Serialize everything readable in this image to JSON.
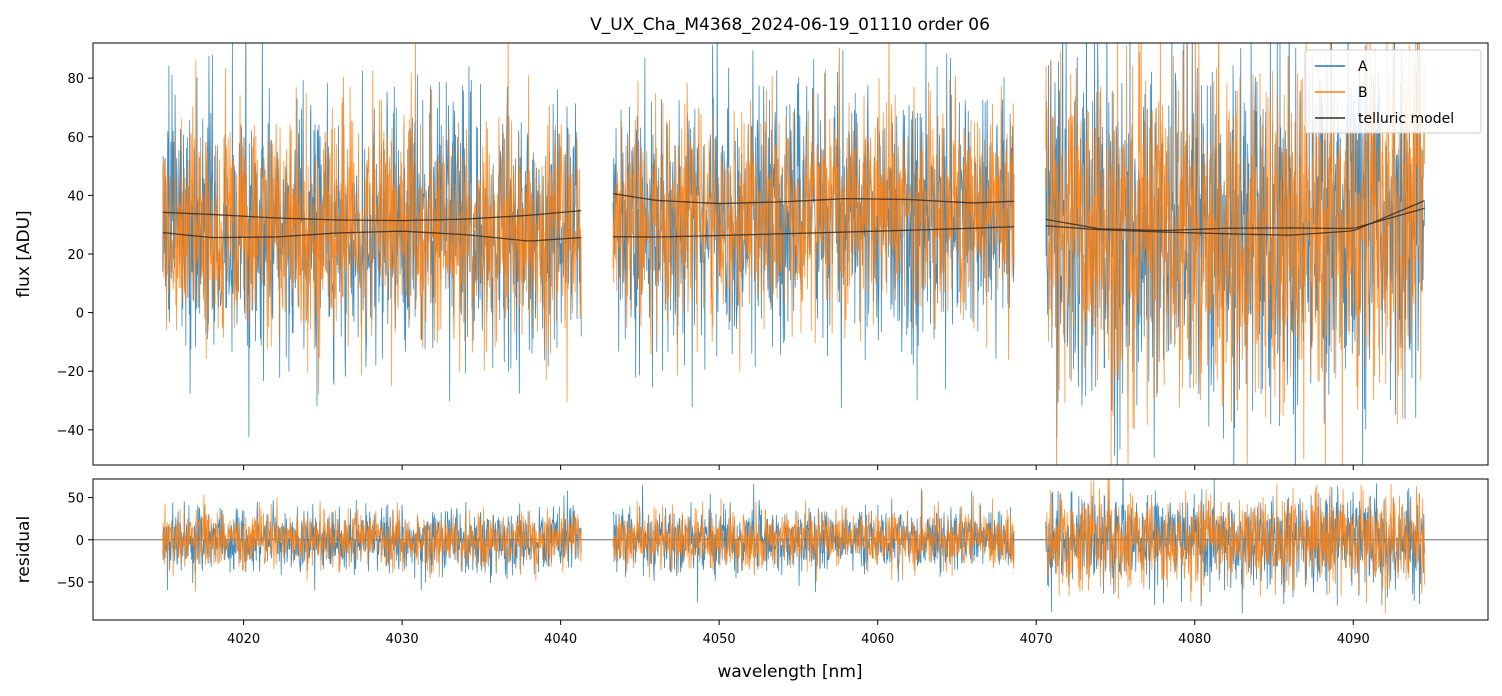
{
  "chart_data": {
    "type": "line",
    "title": "V_UX_Cha_M4368_2024-06-19_01110  order 06",
    "xlabel": "wavelength [nm]",
    "xlim": [
      4010.5,
      4098.5
    ],
    "xticks": [
      4020,
      4030,
      4040,
      4050,
      4060,
      4070,
      4080,
      4090
    ],
    "segments": [
      [
        4014.9,
        4041.3
      ],
      [
        4043.3,
        4068.6
      ],
      [
        4070.6,
        4094.5
      ]
    ],
    "colors": {
      "A": "#1f77b4",
      "B": "#ff7f0e",
      "model": "#3b2a20"
    },
    "panels": [
      {
        "name": "flux",
        "ylabel": "flux [ADU]",
        "ylim": [
          -52,
          92
        ],
        "yticks": [
          -40,
          -20,
          0,
          20,
          40,
          60,
          80
        ],
        "noise": [
          {
            "series": "A",
            "sigma": [
              22,
              21,
              30
            ]
          },
          {
            "series": "B",
            "sigma": [
              20,
              19,
              30
            ]
          }
        ],
        "telluric_model": [
          {
            "segment": 0,
            "x": [
              4014.9,
              4018,
              4022,
              4026,
              4030,
              4034,
              4038,
              4041.3
            ],
            "y": [
              34.2,
              33.5,
              32.3,
              31.6,
              31.4,
              31.9,
              33.2,
              34.8
            ]
          },
          {
            "segment": 0,
            "x": [
              4014.9,
              4018,
              4022,
              4026,
              4030,
              4034,
              4038,
              4041.3
            ],
            "y": [
              27.3,
              25.6,
              25.8,
              27.2,
              27.8,
              26.6,
              24.4,
              25.6
            ]
          },
          {
            "segment": 1,
            "x": [
              4043.3,
              4046,
              4050,
              4054,
              4058,
              4062,
              4066,
              4068.6
            ],
            "y": [
              40.6,
              38.3,
              37.2,
              37.8,
              38.9,
              38.6,
              37.4,
              38.0
            ]
          },
          {
            "segment": 1,
            "x": [
              4043.3,
              4046,
              4050,
              4054,
              4058,
              4062,
              4066,
              4068.6
            ],
            "y": [
              25.9,
              25.8,
              26.3,
              26.9,
              27.5,
              28.1,
              28.8,
              29.3
            ]
          },
          {
            "segment": 2,
            "x": [
              4070.6,
              4074,
              4078,
              4082,
              4086,
              4090,
              4094.5
            ],
            "y": [
              31.8,
              28.6,
              28.0,
              28.8,
              28.9,
              28.7,
              35.6
            ]
          },
          {
            "segment": 2,
            "x": [
              4070.6,
              4074,
              4078,
              4082,
              4086,
              4090,
              4094.5
            ],
            "y": [
              29.6,
              28.3,
              27.5,
              26.9,
              26.4,
              27.9,
              38.2
            ]
          }
        ]
      },
      {
        "name": "residual",
        "ylabel": "residual",
        "ylim": [
          -95,
          72
        ],
        "yticks": [
          -50,
          0,
          50
        ],
        "zero_line": true,
        "noise": [
          {
            "series": "A",
            "sigma": [
              19,
              19,
              28
            ]
          },
          {
            "series": "B",
            "sigma": [
              17,
              17,
              28
            ]
          }
        ]
      }
    ],
    "legend": {
      "placement": "top-right",
      "entries": [
        {
          "label": "A",
          "series": "A"
        },
        {
          "label": "B",
          "series": "B"
        },
        {
          "label": "telluric model",
          "series": "model"
        }
      ]
    }
  }
}
